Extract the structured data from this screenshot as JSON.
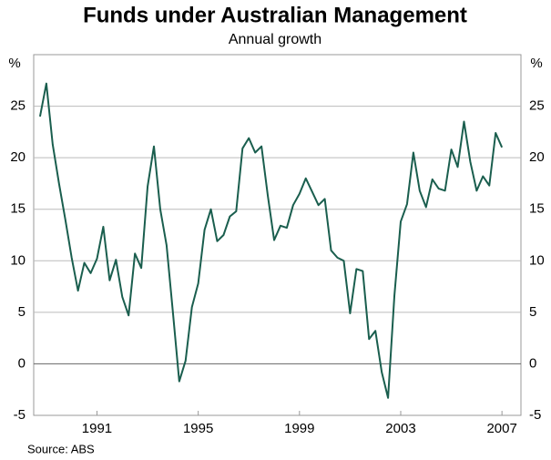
{
  "chart_data": {
    "type": "line",
    "title": "Funds under Australian Management",
    "subtitle": "Annual growth",
    "y_label": "%",
    "y2_label": "%",
    "source": "Source: ABS",
    "x": [
      1989.25,
      1989.5,
      1989.75,
      1990,
      1990.25,
      1990.5,
      1990.75,
      1991,
      1991.25,
      1991.5,
      1991.75,
      1992,
      1992.25,
      1992.5,
      1992.75,
      1993,
      1993.25,
      1993.5,
      1993.75,
      1994,
      1994.25,
      1994.5,
      1994.75,
      1995,
      1995.25,
      1995.5,
      1995.75,
      1996,
      1996.25,
      1996.5,
      1996.75,
      1997,
      1997.25,
      1997.5,
      1997.75,
      1998,
      1998.25,
      1998.5,
      1998.75,
      1999,
      1999.25,
      1999.5,
      1999.75,
      2000,
      2000.25,
      2000.5,
      2000.75,
      2001,
      2001.25,
      2001.5,
      2001.75,
      2002,
      2002.25,
      2002.5,
      2002.75,
      2003,
      2003.25,
      2003.5,
      2003.75,
      2004,
      2004.25,
      2004.5,
      2004.75,
      2005,
      2005.25,
      2005.5,
      2005.75,
      2006,
      2006.25,
      2006.5,
      2006.75,
      2007,
      2007.25,
      2007.5
    ],
    "series": [
      {
        "name": "Annual growth",
        "color": "#1a5e4e",
        "values": [
          24,
          27.2,
          21.3,
          17.5,
          14,
          10.3,
          7.1,
          9.8,
          8.8,
          10.2,
          13.3,
          8.1,
          10.1,
          6.5,
          4.7,
          10.7,
          9.3,
          17.2,
          21.1,
          15,
          11.5,
          5,
          -1.7,
          0.3,
          5.5,
          7.8,
          13,
          15,
          11.9,
          12.5,
          14.3,
          14.8,
          20.9,
          21.9,
          20.5,
          21.1,
          16.3,
          12,
          13.4,
          13.2,
          15.4,
          16.5,
          18,
          16.7,
          15.4,
          16,
          11,
          10.3,
          10,
          4.9,
          9.2,
          9,
          2.4,
          3.2,
          -0.8,
          -3.3,
          6.6,
          13.8,
          15.5,
          20.5,
          16.8,
          15.2,
          17.9,
          17,
          16.8,
          20.8,
          19.1,
          23.5,
          19.6,
          16.8,
          18.2,
          17.3,
          22.4,
          21
        ]
      }
    ],
    "xlim": [
      1989,
      2008.25
    ],
    "xticks": [
      {
        "value": 1991.5,
        "label": "1991"
      },
      {
        "value": 1995.5,
        "label": "1995"
      },
      {
        "value": 1999.5,
        "label": "1999"
      },
      {
        "value": 2003.5,
        "label": "2003"
      },
      {
        "value": 2007.5,
        "label": "2007"
      }
    ],
    "ylim": [
      -5,
      30
    ],
    "yticks": [
      -5,
      0,
      5,
      10,
      15,
      20,
      25
    ],
    "y2lim": [
      -5,
      30
    ],
    "y2ticks": [
      -5,
      0,
      5,
      10,
      15,
      20,
      25
    ],
    "grid": true
  }
}
